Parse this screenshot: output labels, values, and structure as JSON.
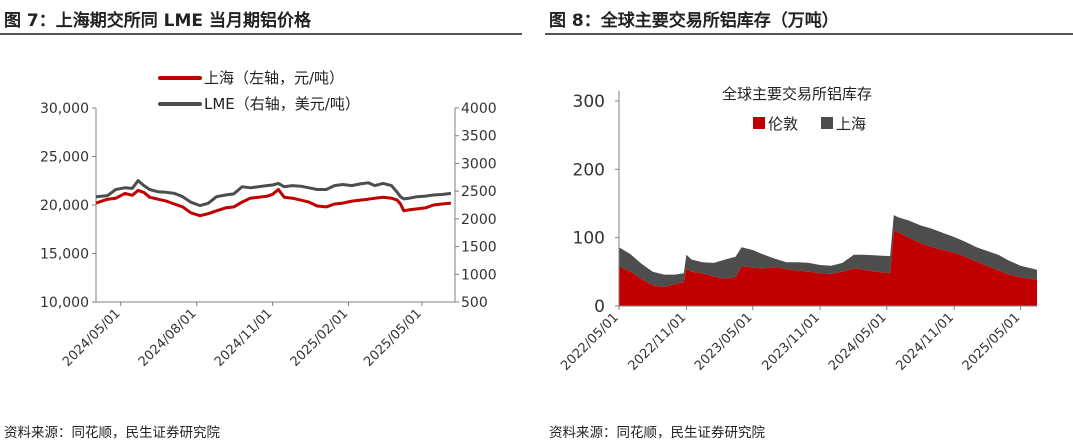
{
  "figures": [
    {
      "title": "图 7：上海期交所同 LME 当月期铝价格",
      "source": "资料来源：同花顺，民生证券研究院"
    },
    {
      "title": "图 8：全球主要交易所铝库存（万吨）",
      "source": "资料来源：同花顺，民生证券研究院"
    }
  ],
  "chart_data": [
    {
      "type": "line",
      "title": "",
      "x_tick_labels": [
        "2024/05/01",
        "2024/08/01",
        "2024/11/01",
        "2025/02/01",
        "2025/05/01"
      ],
      "y_left": {
        "ticks": [
          "10,000",
          "15,000",
          "20,000",
          "25,000",
          "30,000"
        ],
        "ylim": [
          10000,
          30000
        ]
      },
      "y_right": {
        "ticks": [
          "500",
          "1000",
          "1500",
          "2000",
          "2500",
          "3000",
          "3500",
          "4000"
        ],
        "ylim": [
          500,
          4000
        ]
      },
      "x_range": [
        "2024-04-01",
        "2025-06-10"
      ],
      "grid": false,
      "legend_position": "top-center",
      "series": [
        {
          "name": "上海（左轴，元/吨）",
          "axis": "left",
          "color": "#c00000",
          "points": [
            [
              "2024-04-01",
              20200
            ],
            [
              "2024-04-15",
              20600
            ],
            [
              "2024-04-25",
              20700
            ],
            [
              "2024-05-06",
              21200
            ],
            [
              "2024-05-15",
              21000
            ],
            [
              "2024-05-22",
              21500
            ],
            [
              "2024-05-29",
              21300
            ],
            [
              "2024-06-05",
              20800
            ],
            [
              "2024-06-15",
              20600
            ],
            [
              "2024-06-25",
              20400
            ],
            [
              "2024-07-05",
              20100
            ],
            [
              "2024-07-15",
              19800
            ],
            [
              "2024-07-25",
              19200
            ],
            [
              "2024-08-05",
              18900
            ],
            [
              "2024-08-15",
              19100
            ],
            [
              "2024-08-25",
              19400
            ],
            [
              "2024-09-05",
              19700
            ],
            [
              "2024-09-15",
              19800
            ],
            [
              "2024-09-25",
              20300
            ],
            [
              "2024-10-05",
              20700
            ],
            [
              "2024-10-15",
              20800
            ],
            [
              "2024-10-25",
              20900
            ],
            [
              "2024-11-01",
              21100
            ],
            [
              "2024-11-08",
              21600
            ],
            [
              "2024-11-15",
              20800
            ],
            [
              "2024-11-25",
              20700
            ],
            [
              "2024-12-05",
              20500
            ],
            [
              "2024-12-15",
              20300
            ],
            [
              "2024-12-25",
              19900
            ],
            [
              "2025-01-05",
              19800
            ],
            [
              "2025-01-15",
              20100
            ],
            [
              "2025-01-25",
              20200
            ],
            [
              "2025-02-05",
              20400
            ],
            [
              "2025-02-15",
              20500
            ],
            [
              "2025-02-25",
              20600
            ],
            [
              "2025-03-05",
              20700
            ],
            [
              "2025-03-15",
              20800
            ],
            [
              "2025-03-25",
              20700
            ],
            [
              "2025-04-01",
              20500
            ],
            [
              "2025-04-05",
              20100
            ],
            [
              "2025-04-09",
              19400
            ],
            [
              "2025-04-15",
              19500
            ],
            [
              "2025-04-25",
              19600
            ],
            [
              "2025-05-05",
              19700
            ],
            [
              "2025-05-15",
              20000
            ],
            [
              "2025-05-25",
              20100
            ],
            [
              "2025-06-05",
              20200
            ]
          ]
        },
        {
          "name": "LME（右轴，美元/吨）",
          "axis": "right",
          "color": "#4d4d4d",
          "points": [
            [
              "2024-04-01",
              2400
            ],
            [
              "2024-04-15",
              2420
            ],
            [
              "2024-04-25",
              2530
            ],
            [
              "2024-05-06",
              2560
            ],
            [
              "2024-05-15",
              2550
            ],
            [
              "2024-05-22",
              2690
            ],
            [
              "2024-05-29",
              2600
            ],
            [
              "2024-06-05",
              2530
            ],
            [
              "2024-06-15",
              2490
            ],
            [
              "2024-06-25",
              2480
            ],
            [
              "2024-07-05",
              2460
            ],
            [
              "2024-07-15",
              2400
            ],
            [
              "2024-07-25",
              2300
            ],
            [
              "2024-08-05",
              2240
            ],
            [
              "2024-08-15",
              2280
            ],
            [
              "2024-08-25",
              2400
            ],
            [
              "2024-09-05",
              2430
            ],
            [
              "2024-09-15",
              2450
            ],
            [
              "2024-09-25",
              2580
            ],
            [
              "2024-10-05",
              2560
            ],
            [
              "2024-10-15",
              2580
            ],
            [
              "2024-10-25",
              2600
            ],
            [
              "2024-11-01",
              2610
            ],
            [
              "2024-11-08",
              2640
            ],
            [
              "2024-11-15",
              2580
            ],
            [
              "2024-11-25",
              2600
            ],
            [
              "2024-12-05",
              2590
            ],
            [
              "2024-12-15",
              2560
            ],
            [
              "2024-12-25",
              2530
            ],
            [
              "2025-01-05",
              2530
            ],
            [
              "2025-01-15",
              2600
            ],
            [
              "2025-01-25",
              2620
            ],
            [
              "2025-02-05",
              2600
            ],
            [
              "2025-02-15",
              2630
            ],
            [
              "2025-02-25",
              2650
            ],
            [
              "2025-03-05",
              2600
            ],
            [
              "2025-03-15",
              2640
            ],
            [
              "2025-03-25",
              2600
            ],
            [
              "2025-04-01",
              2480
            ],
            [
              "2025-04-05",
              2400
            ],
            [
              "2025-04-09",
              2360
            ],
            [
              "2025-04-15",
              2370
            ],
            [
              "2025-04-25",
              2400
            ],
            [
              "2025-05-05",
              2410
            ],
            [
              "2025-05-15",
              2430
            ],
            [
              "2025-05-25",
              2440
            ],
            [
              "2025-06-05",
              2460
            ]
          ]
        }
      ]
    },
    {
      "type": "area",
      "stacked": true,
      "title": "全球主要交易所铝库存",
      "x_tick_labels": [
        "2022/05/01",
        "2022/11/01",
        "2023/05/01",
        "2023/11/01",
        "2024/05/01",
        "2024/11/01",
        "2025/05/01"
      ],
      "y_ticks": [
        "0",
        "100",
        "200",
        "300"
      ],
      "ylim": [
        0,
        300
      ],
      "x_range": [
        "2022-05-01",
        "2025-06-15"
      ],
      "grid": false,
      "legend_position": "top-center",
      "series": [
        {
          "name": "伦敦",
          "color": "#c00000",
          "points": [
            [
              "2022-05-01",
              58
            ],
            [
              "2022-06-01",
              50
            ],
            [
              "2022-07-01",
              40
            ],
            [
              "2022-08-01",
              30
            ],
            [
              "2022-09-01",
              28
            ],
            [
              "2022-10-01",
              32
            ],
            [
              "2022-10-25",
              35
            ],
            [
              "2022-11-01",
              55
            ],
            [
              "2022-11-15",
              50
            ],
            [
              "2022-12-15",
              48
            ],
            [
              "2023-01-15",
              43
            ],
            [
              "2023-02-15",
              40
            ],
            [
              "2023-03-15",
              42
            ],
            [
              "2023-04-01",
              58
            ],
            [
              "2023-05-01",
              56
            ],
            [
              "2023-06-01",
              55
            ],
            [
              "2023-07-01",
              57
            ],
            [
              "2023-08-01",
              54
            ],
            [
              "2023-09-01",
              52
            ],
            [
              "2023-10-01",
              50
            ],
            [
              "2023-11-01",
              48
            ],
            [
              "2023-12-01",
              47
            ],
            [
              "2024-01-01",
              50
            ],
            [
              "2024-02-01",
              55
            ],
            [
              "2024-03-01",
              53
            ],
            [
              "2024-04-01",
              50
            ],
            [
              "2024-05-10",
              48
            ],
            [
              "2024-05-20",
              110
            ],
            [
              "2024-06-01",
              108
            ],
            [
              "2024-07-01",
              100
            ],
            [
              "2024-08-01",
              92
            ],
            [
              "2024-09-01",
              86
            ],
            [
              "2024-10-01",
              82
            ],
            [
              "2024-11-01",
              78
            ],
            [
              "2024-12-01",
              72
            ],
            [
              "2025-01-01",
              65
            ],
            [
              "2025-02-01",
              58
            ],
            [
              "2025-03-01",
              52
            ],
            [
              "2025-04-01",
              46
            ],
            [
              "2025-05-01",
              42
            ],
            [
              "2025-06-15",
              38
            ]
          ]
        },
        {
          "name": "上海",
          "color": "#4d4d4d",
          "points": [
            [
              "2022-05-01",
              28
            ],
            [
              "2022-06-01",
              26
            ],
            [
              "2022-07-01",
              22
            ],
            [
              "2022-08-01",
              20
            ],
            [
              "2022-09-01",
              18
            ],
            [
              "2022-10-01",
              14
            ],
            [
              "2022-10-25",
              13
            ],
            [
              "2022-11-01",
              20
            ],
            [
              "2022-11-15",
              18
            ],
            [
              "2022-12-15",
              16
            ],
            [
              "2023-01-15",
              20
            ],
            [
              "2023-02-15",
              28
            ],
            [
              "2023-03-15",
              30
            ],
            [
              "2023-04-01",
              28
            ],
            [
              "2023-05-01",
              26
            ],
            [
              "2023-06-01",
              20
            ],
            [
              "2023-07-01",
              12
            ],
            [
              "2023-08-01",
              10
            ],
            [
              "2023-09-01",
              12
            ],
            [
              "2023-10-01",
              13
            ],
            [
              "2023-11-01",
              12
            ],
            [
              "2023-12-01",
              12
            ],
            [
              "2024-01-01",
              13
            ],
            [
              "2024-02-01",
              20
            ],
            [
              "2024-03-01",
              22
            ],
            [
              "2024-04-01",
              24
            ],
            [
              "2024-05-10",
              25
            ],
            [
              "2024-05-20",
              23
            ],
            [
              "2024-06-01",
              22
            ],
            [
              "2024-07-01",
              25
            ],
            [
              "2024-08-01",
              26
            ],
            [
              "2024-09-01",
              27
            ],
            [
              "2024-10-01",
              25
            ],
            [
              "2024-11-01",
              23
            ],
            [
              "2024-12-01",
              22
            ],
            [
              "2025-01-01",
              21
            ],
            [
              "2025-02-01",
              22
            ],
            [
              "2025-03-01",
              23
            ],
            [
              "2025-04-01",
              20
            ],
            [
              "2025-05-01",
              17
            ],
            [
              "2025-06-15",
              15
            ]
          ]
        }
      ]
    }
  ]
}
